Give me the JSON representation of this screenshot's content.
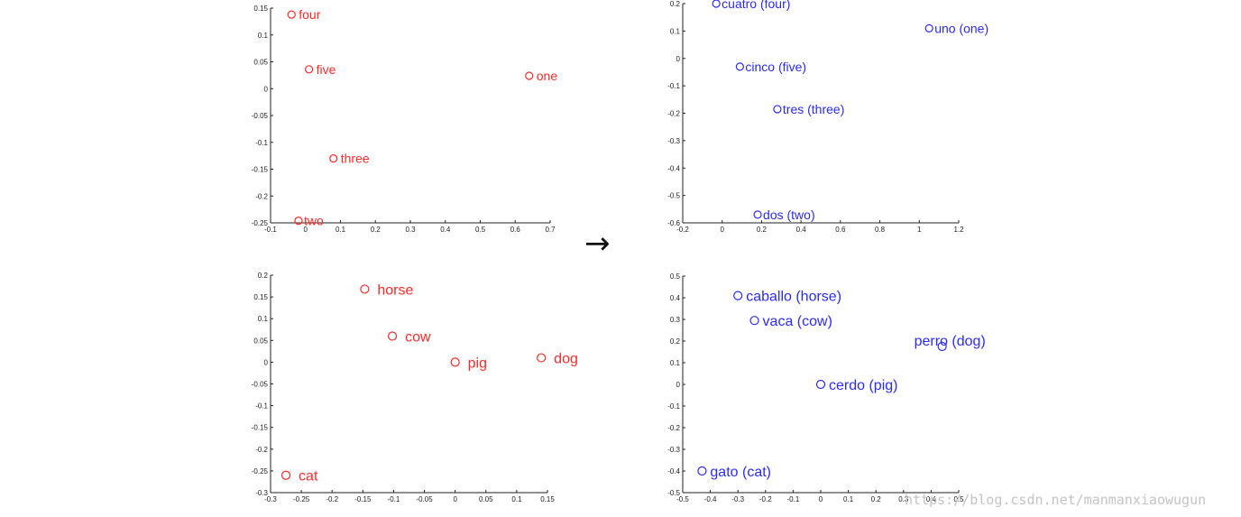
{
  "arrow_glyph": "→",
  "watermark": "https://blog.csdn.net/manmanxiaowugun",
  "colors": {
    "english": "#ff2a2a",
    "spanish": "#2b2bff",
    "axis": "#222222"
  },
  "chart_data": [
    {
      "type": "scatter",
      "language": "english",
      "xlim": [
        -0.1,
        0.7
      ],
      "ylim": [
        -0.25,
        0.15
      ],
      "xticks": [
        -0.1,
        0,
        0.1,
        0.2,
        0.3,
        0.4,
        0.5,
        0.6,
        0.7
      ],
      "xtick_labels": [
        "-0.1",
        "0",
        "0.1",
        "0.2",
        "0.3",
        "0.4",
        "0.5",
        "0.6",
        "0.7"
      ],
      "yticks": [
        -0.25,
        -0.2,
        -0.15,
        -0.1,
        -0.05,
        0,
        0.05,
        0.1,
        0.15
      ],
      "ytick_labels": [
        "-0.25",
        "-0.2",
        "-0.15",
        "-0.1",
        "-0.05",
        "0",
        "0.05",
        "0.1",
        "0.15"
      ],
      "points": [
        {
          "label": "four",
          "x": -0.04,
          "y": 0.138
        },
        {
          "label": "five",
          "x": 0.01,
          "y": 0.036
        },
        {
          "label": "one",
          "x": 0.64,
          "y": 0.024
        },
        {
          "label": "three",
          "x": 0.08,
          "y": -0.13
        },
        {
          "label": "two",
          "x": -0.02,
          "y": -0.246
        }
      ]
    },
    {
      "type": "scatter",
      "language": "spanish",
      "xlim": [
        -0.2,
        1.2
      ],
      "ylim": [
        -0.6,
        0.2
      ],
      "xticks": [
        -0.2,
        0,
        0.2,
        0.4,
        0.6,
        0.8,
        1,
        1.2
      ],
      "xtick_labels": [
        "-0.2",
        "0",
        "0.2",
        "0.4",
        "0.6",
        "0.8",
        "1",
        "1.2"
      ],
      "yticks": [
        -0.6,
        -0.5,
        -0.4,
        -0.3,
        -0.2,
        -0.1,
        0,
        0.1,
        0.2
      ],
      "ytick_labels": [
        "-0.6",
        "-0.5",
        "-0.4",
        "-0.3",
        "-0.2",
        "-0.1",
        "0",
        "0.1",
        "0.2"
      ],
      "points": [
        {
          "label": "cuatro (four)",
          "x": -0.03,
          "y": 0.2
        },
        {
          "label": "uno (one)",
          "x": 1.05,
          "y": 0.11
        },
        {
          "label": "cinco (five)",
          "x": 0.09,
          "y": -0.03
        },
        {
          "label": "tres (three)",
          "x": 0.28,
          "y": -0.185
        },
        {
          "label": "dos (two)",
          "x": 0.18,
          "y": -0.57
        }
      ]
    },
    {
      "type": "scatter",
      "language": "english",
      "xlim": [
        -0.3,
        0.15
      ],
      "ylim": [
        -0.3,
        0.2
      ],
      "xticks": [
        -0.3,
        -0.25,
        -0.2,
        -0.15,
        -0.1,
        -0.05,
        0,
        0.05,
        0.1,
        0.15
      ],
      "xtick_labels": [
        "-0.3",
        "-0.25",
        "-0.2",
        "-0.15",
        "-0.1",
        "-0.05",
        "0",
        "0.05",
        "0.1",
        "0.15"
      ],
      "yticks": [
        -0.3,
        -0.25,
        -0.2,
        -0.15,
        -0.1,
        -0.05,
        0,
        0.05,
        0.1,
        0.15,
        0.2
      ],
      "ytick_labels": [
        "-0.3",
        "-0.25",
        "-0.2",
        "-0.15",
        "-0.1",
        "-0.05",
        "0",
        "0.05",
        "0.1",
        "0.15",
        "0.2"
      ],
      "points": [
        {
          "label": "horse",
          "x": -0.147,
          "y": 0.168
        },
        {
          "label": "cow",
          "x": -0.102,
          "y": 0.06
        },
        {
          "label": "pig",
          "x": 0.0,
          "y": 0.0
        },
        {
          "label": "dog",
          "x": 0.14,
          "y": 0.01
        },
        {
          "label": "cat",
          "x": -0.275,
          "y": -0.26
        }
      ]
    },
    {
      "type": "scatter",
      "language": "spanish",
      "xlim": [
        -0.5,
        0.5
      ],
      "ylim": [
        -0.5,
        0.5
      ],
      "xticks": [
        -0.5,
        -0.4,
        -0.3,
        -0.2,
        -0.1,
        0,
        0.1,
        0.2,
        0.3,
        0.4,
        0.5
      ],
      "xtick_labels": [
        "-0.5",
        "-0.4",
        "-0.3",
        "-0.2",
        "-0.1",
        "0",
        "0.1",
        "0.2",
        "0.3",
        "0.4",
        "0.5"
      ],
      "yticks": [
        -0.5,
        -0.4,
        -0.3,
        -0.2,
        -0.1,
        0,
        0.1,
        0.2,
        0.3,
        0.4,
        0.5
      ],
      "ytick_labels": [
        "-0.5",
        "-0.4",
        "-0.3",
        "-0.2",
        "-0.1",
        "0",
        "0.1",
        "0.2",
        "0.3",
        "0.4",
        "0.5"
      ],
      "points": [
        {
          "label": "caballo (horse)",
          "x": -0.3,
          "y": 0.41
        },
        {
          "label": "vaca (cow)",
          "x": -0.24,
          "y": 0.295
        },
        {
          "label": "perro (dog)",
          "x": 0.44,
          "y": 0.175
        },
        {
          "label": "cerdo (pig)",
          "x": 0.0,
          "y": 0.0
        },
        {
          "label": "gato (cat)",
          "x": -0.43,
          "y": -0.4
        }
      ]
    }
  ]
}
